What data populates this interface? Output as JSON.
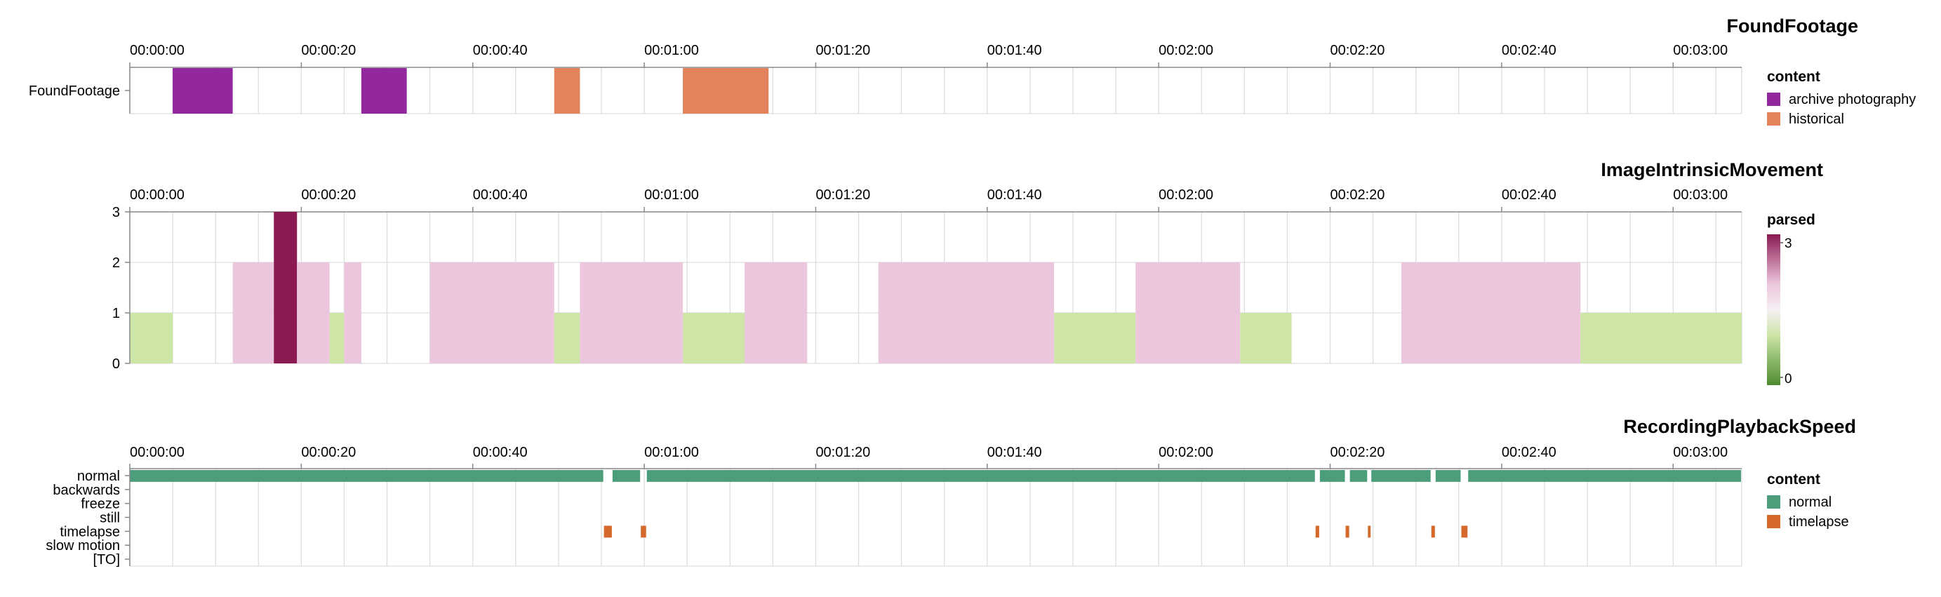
{
  "time_ticks": [
    "00:00:00",
    "00:00:20",
    "00:00:40",
    "00:01:00",
    "00:01:20",
    "00:01:40",
    "00:02:00",
    "00:02:20",
    "00:02:40",
    "00:03:00"
  ],
  "colors": {
    "archive_photography": "#93289e",
    "historical": "#e2835b",
    "normal": "#4c9e7b",
    "timelapse": "#d5692b",
    "level_0": "#4d8b2f",
    "level_1": "#cde6a8",
    "level_2": "#ecc6dd",
    "level_3": "#8b1a52",
    "grid": "#dddddd",
    "axis": "#888888"
  },
  "chart_data": [
    {
      "type": "bar",
      "title": "FoundFootage",
      "x_unit": "seconds",
      "xlim": [
        0,
        188
      ],
      "y_categories": [
        "FoundFootage"
      ],
      "legend": {
        "title": "content",
        "position": "right",
        "entries": [
          {
            "label": "archive photography",
            "color_key": "archive_photography"
          },
          {
            "label": "historical",
            "color_key": "historical"
          }
        ]
      },
      "segments": [
        {
          "start": 5,
          "end": 12,
          "category": "FoundFootage",
          "content": "archive_photography"
        },
        {
          "start": 27,
          "end": 32.3,
          "category": "FoundFootage",
          "content": "archive_photography"
        },
        {
          "start": 49.5,
          "end": 52.5,
          "category": "FoundFootage",
          "content": "historical"
        },
        {
          "start": 64.5,
          "end": 74.5,
          "category": "FoundFootage",
          "content": "historical"
        }
      ]
    },
    {
      "type": "area",
      "title": "ImageIntrinsicMovement",
      "x_unit": "seconds",
      "xlim": [
        0,
        188
      ],
      "ylim": [
        0,
        3
      ],
      "y_ticks": [
        "0",
        "1",
        "2",
        "3"
      ],
      "legend": {
        "title": "parsed",
        "position": "right",
        "type": "gradient",
        "min_label": "0",
        "max_label": "3"
      },
      "segments": [
        {
          "start": 0,
          "end": 5,
          "value": 1
        },
        {
          "start": 12,
          "end": 16.8,
          "value": 2
        },
        {
          "start": 16.8,
          "end": 19.5,
          "value": 3
        },
        {
          "start": 19.5,
          "end": 23.3,
          "value": 2
        },
        {
          "start": 23.3,
          "end": 25,
          "value": 1
        },
        {
          "start": 25,
          "end": 27,
          "value": 2
        },
        {
          "start": 35,
          "end": 49.5,
          "value": 2
        },
        {
          "start": 49.5,
          "end": 52.5,
          "value": 1
        },
        {
          "start": 52.5,
          "end": 64.5,
          "value": 2
        },
        {
          "start": 64.5,
          "end": 71.7,
          "value": 1
        },
        {
          "start": 71.7,
          "end": 79,
          "value": 2
        },
        {
          "start": 87.3,
          "end": 107.8,
          "value": 2
        },
        {
          "start": 107.8,
          "end": 117.3,
          "value": 1
        },
        {
          "start": 117.3,
          "end": 129.5,
          "value": 2
        },
        {
          "start": 129.5,
          "end": 135.5,
          "value": 1
        },
        {
          "start": 148.3,
          "end": 169.2,
          "value": 2
        },
        {
          "start": 169.2,
          "end": 188,
          "value": 1
        }
      ]
    },
    {
      "type": "bar",
      "title": "RecordingPlaybackSpeed",
      "x_unit": "seconds",
      "xlim": [
        0,
        188
      ],
      "y_categories": [
        "normal",
        "backwards",
        "freeze",
        "still",
        "timelapse",
        "slow motion",
        "[TO]"
      ],
      "legend": {
        "title": "content",
        "position": "right",
        "entries": [
          {
            "label": "normal",
            "color_key": "normal"
          },
          {
            "label": "timelapse",
            "color_key": "timelapse"
          }
        ]
      },
      "segments": [
        {
          "start": 0,
          "end": 55.3,
          "category": "normal",
          "content": "normal"
        },
        {
          "start": 55.3,
          "end": 56.3,
          "category": "timelapse",
          "content": "timelapse"
        },
        {
          "start": 56.3,
          "end": 59.6,
          "category": "normal",
          "content": "normal"
        },
        {
          "start": 59.6,
          "end": 60.3,
          "category": "timelapse",
          "content": "timelapse"
        },
        {
          "start": 60.3,
          "end": 138.3,
          "category": "normal",
          "content": "normal"
        },
        {
          "start": 138.3,
          "end": 138.8,
          "category": "timelapse",
          "content": "timelapse"
        },
        {
          "start": 138.8,
          "end": 141.8,
          "category": "normal",
          "content": "normal"
        },
        {
          "start": 141.8,
          "end": 142.3,
          "category": "timelapse",
          "content": "timelapse"
        },
        {
          "start": 142.3,
          "end": 144.4,
          "category": "normal",
          "content": "normal"
        },
        {
          "start": 144.4,
          "end": 144.8,
          "category": "timelapse",
          "content": "timelapse"
        },
        {
          "start": 144.8,
          "end": 151.8,
          "category": "normal",
          "content": "normal"
        },
        {
          "start": 151.8,
          "end": 152.3,
          "category": "timelapse",
          "content": "timelapse"
        },
        {
          "start": 152.3,
          "end": 155.3,
          "category": "normal",
          "content": "normal"
        },
        {
          "start": 155.3,
          "end": 156.1,
          "category": "timelapse",
          "content": "timelapse"
        },
        {
          "start": 156.1,
          "end": 188,
          "category": "normal",
          "content": "normal"
        }
      ]
    }
  ]
}
